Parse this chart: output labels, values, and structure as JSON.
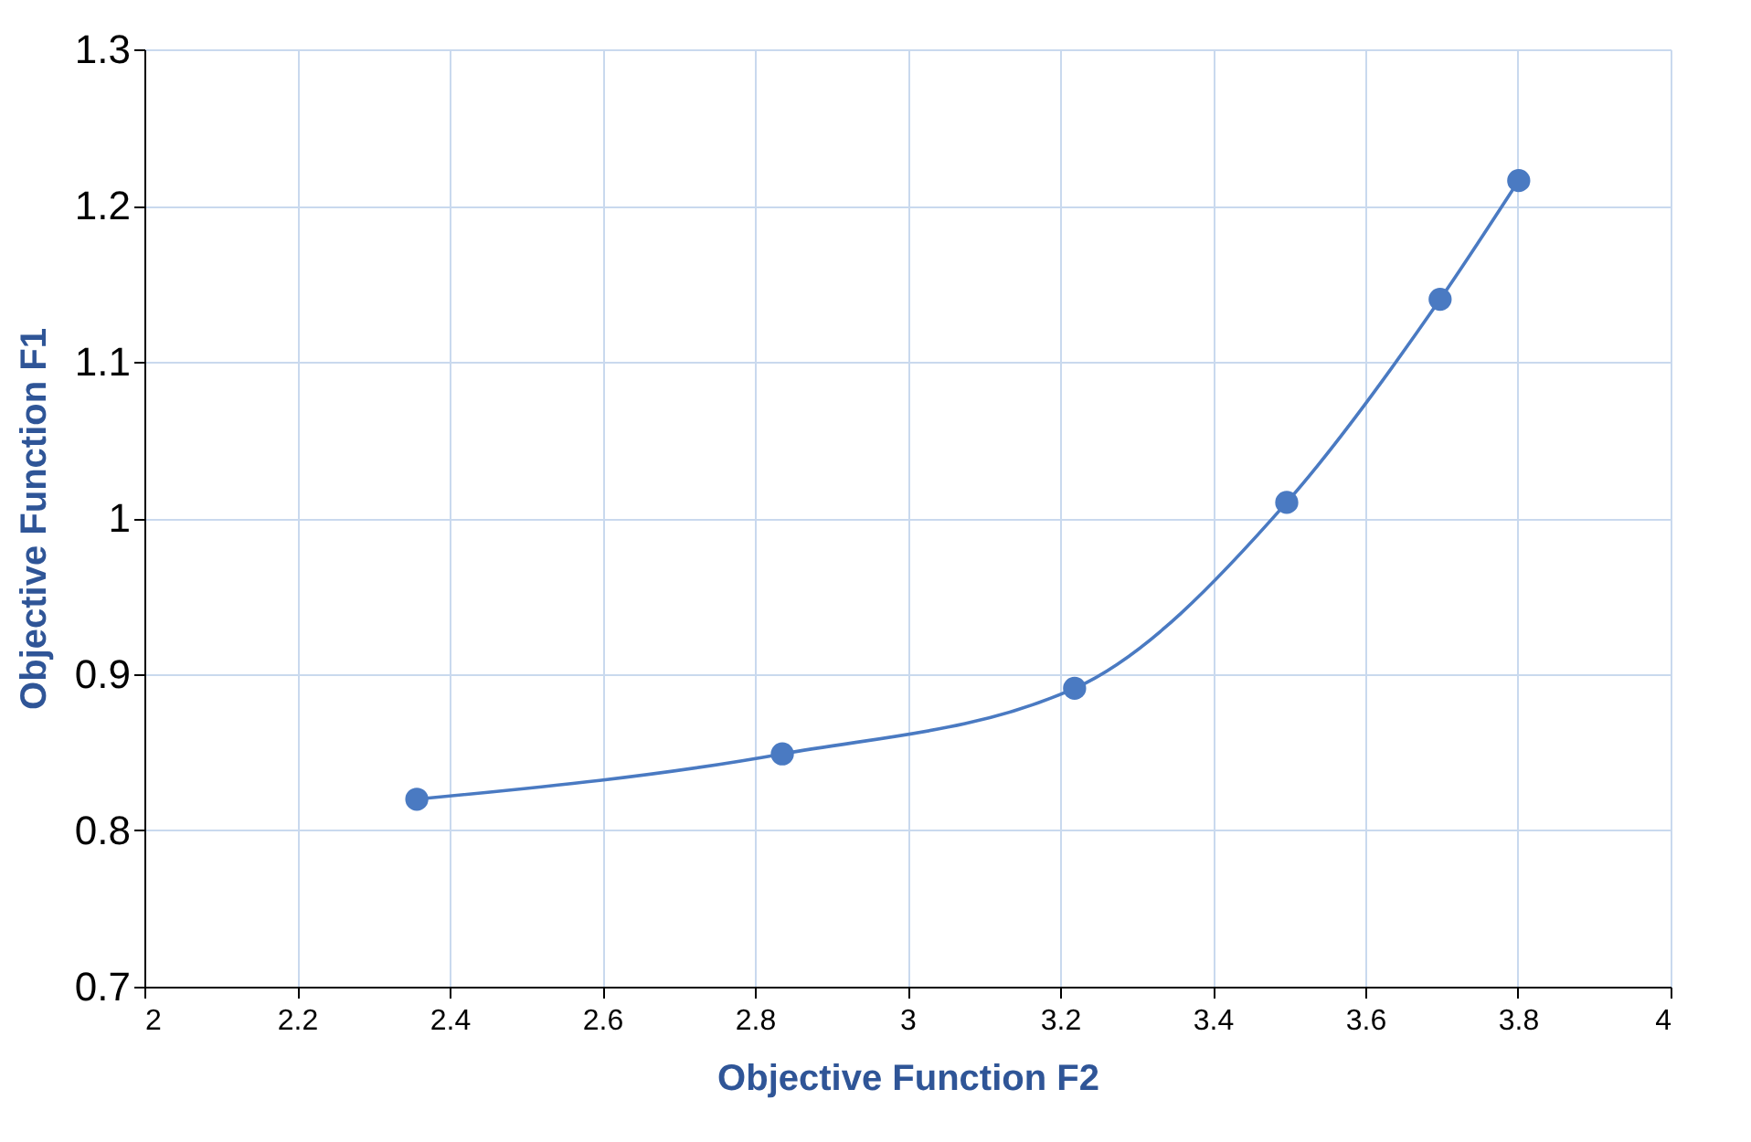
{
  "chart_data": {
    "type": "line",
    "xlabel": "Objective Function F2",
    "ylabel": "Objective Function F1",
    "x": [
      2.357,
      2.836,
      3.219,
      3.497,
      3.698,
      3.801
    ],
    "series": [
      {
        "color": "#4a7ac2",
        "values": [
          0.82,
          0.849,
          0.891,
          1.01,
          1.14,
          1.216
        ]
      }
    ],
    "xlim": [
      2,
      4
    ],
    "xticks": [
      2,
      2.2,
      2.4,
      2.6,
      2.8,
      3,
      3.2,
      3.4,
      3.6,
      3.8,
      4
    ],
    "ylim": [
      0.7,
      1.3
    ],
    "yticks": [
      0.7,
      0.8,
      0.9,
      1,
      1.1,
      1.2,
      1.3
    ],
    "grid": true,
    "marker": "circle",
    "line_style": "solid"
  }
}
